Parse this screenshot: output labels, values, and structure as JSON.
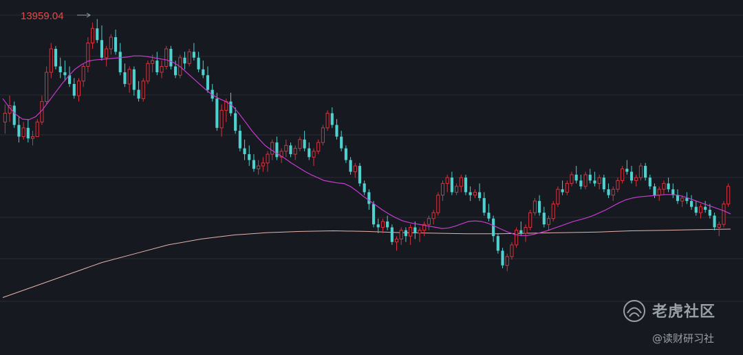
{
  "chart_data": {
    "type": "candlestick",
    "max_price_label": "13959.04",
    "ylim": [
      8900,
      14050
    ],
    "colors": {
      "up": "#d9333f",
      "down": "#4fd1cf",
      "ma_fast": "#c93ad0",
      "ma_slow": "#e8b5ad",
      "grid": "#2a2e36",
      "background": "#16191f"
    },
    "candles": [
      [
        12200,
        12500,
        12000,
        12350
      ],
      [
        12350,
        12650,
        12200,
        12480
      ],
      [
        12480,
        12550,
        12100,
        12150
      ],
      [
        12150,
        12300,
        11850,
        11950
      ],
      [
        11950,
        12200,
        11900,
        12100
      ],
      [
        12100,
        12250,
        11850,
        11920
      ],
      [
        11920,
        12050,
        11800,
        11950
      ],
      [
        11950,
        12250,
        11950,
        12200
      ],
      [
        12200,
        12650,
        12150,
        12550
      ],
      [
        12550,
        13150,
        12500,
        13050
      ],
      [
        13050,
        13550,
        12950,
        13450
      ],
      [
        13450,
        13500,
        13100,
        13150
      ],
      [
        13150,
        13300,
        12950,
        13050
      ],
      [
        13050,
        13250,
        12900,
        13000
      ],
      [
        13000,
        13150,
        12800,
        12850
      ],
      [
        12850,
        12950,
        12600,
        12650
      ],
      [
        12650,
        12950,
        12550,
        12900
      ],
      [
        12900,
        13200,
        12800,
        13150
      ],
      [
        13150,
        13650,
        13050,
        13550
      ],
      [
        13550,
        13900,
        13450,
        13800
      ],
      [
        13800,
        13959,
        13550,
        13600
      ],
      [
        13600,
        13850,
        13250,
        13300
      ],
      [
        13300,
        13500,
        13150,
        13450
      ],
      [
        13450,
        13700,
        13350,
        13650
      ],
      [
        13650,
        13780,
        13350,
        13400
      ],
      [
        13400,
        13550,
        13000,
        13050
      ],
      [
        13050,
        13200,
        12800,
        12850
      ],
      [
        12850,
        13150,
        12700,
        13100
      ],
      [
        13100,
        13150,
        12650,
        12750
      ],
      [
        12750,
        12900,
        12550,
        12600
      ],
      [
        12600,
        12950,
        12550,
        12900
      ],
      [
        12900,
        13250,
        12850,
        13200
      ],
      [
        13200,
        13350,
        13050,
        13250
      ],
      [
        13250,
        13400,
        13000,
        13050
      ],
      [
        13050,
        13250,
        12950,
        13150
      ],
      [
        13150,
        13500,
        13100,
        13450
      ],
      [
        13450,
        13500,
        13100,
        13150
      ],
      [
        13150,
        13250,
        12950,
        13000
      ],
      [
        13000,
        13350,
        12950,
        13300
      ],
      [
        13300,
        13400,
        13100,
        13200
      ],
      [
        13200,
        13450,
        13150,
        13400
      ],
      [
        13400,
        13550,
        13250,
        13300
      ],
      [
        13300,
        13400,
        13050,
        13100
      ],
      [
        13100,
        13250,
        12950,
        13000
      ],
      [
        13000,
        13150,
        12700,
        12750
      ],
      [
        12750,
        12850,
        12550,
        12600
      ],
      [
        12600,
        12700,
        12050,
        12100
      ],
      [
        12100,
        12500,
        11950,
        12400
      ],
      [
        12400,
        12600,
        12200,
        12550
      ],
      [
        12550,
        12700,
        12300,
        12350
      ],
      [
        12350,
        12450,
        12000,
        12050
      ],
      [
        12050,
        12150,
        11700,
        11750
      ],
      [
        11750,
        11900,
        11550,
        11650
      ],
      [
        11650,
        11800,
        11450,
        11550
      ],
      [
        11550,
        11650,
        11350,
        11400
      ],
      [
        11400,
        11550,
        11300,
        11450
      ],
      [
        11450,
        11600,
        11350,
        11500
      ],
      [
        11500,
        11700,
        11350,
        11650
      ],
      [
        11650,
        11900,
        11550,
        11850
      ],
      [
        11850,
        11950,
        11550,
        11600
      ],
      [
        11600,
        11750,
        11500,
        11700
      ],
      [
        11700,
        11900,
        11600,
        11800
      ],
      [
        11800,
        11850,
        11600,
        11650
      ],
      [
        11650,
        11800,
        11550,
        11750
      ],
      [
        11750,
        11950,
        11700,
        11900
      ],
      [
        11900,
        12050,
        11700,
        11750
      ],
      [
        11750,
        11850,
        11550,
        11600
      ],
      [
        11600,
        11750,
        11450,
        11700
      ],
      [
        11700,
        11900,
        11650,
        11850
      ],
      [
        11850,
        12150,
        11800,
        12100
      ],
      [
        12100,
        12400,
        12050,
        12350
      ],
      [
        12350,
        12450,
        12100,
        12150
      ],
      [
        12150,
        12250,
        11900,
        11950
      ],
      [
        11950,
        12050,
        11700,
        11750
      ],
      [
        11750,
        11800,
        11500,
        11550
      ],
      [
        11550,
        11600,
        11300,
        11350
      ],
      [
        11350,
        11500,
        11250,
        11450
      ],
      [
        11450,
        11500,
        11100,
        11150
      ],
      [
        11150,
        11200,
        10950,
        11000
      ],
      [
        11000,
        11050,
        10700,
        10800
      ],
      [
        10800,
        10850,
        10400,
        10450
      ],
      [
        10450,
        10550,
        10300,
        10400
      ],
      [
        10400,
        10550,
        10300,
        10500
      ],
      [
        10500,
        10600,
        10350,
        10400
      ],
      [
        10400,
        10450,
        10100,
        10150
      ],
      [
        10150,
        10250,
        10000,
        10200
      ],
      [
        10200,
        10400,
        10100,
        10350
      ],
      [
        10350,
        10400,
        10150,
        10250
      ],
      [
        10250,
        10450,
        10100,
        10400
      ],
      [
        10400,
        10500,
        10200,
        10300
      ],
      [
        10300,
        10400,
        10150,
        10350
      ],
      [
        10350,
        10500,
        10250,
        10450
      ],
      [
        10450,
        10600,
        10350,
        10550
      ],
      [
        10550,
        10700,
        10450,
        10650
      ],
      [
        10650,
        11000,
        10600,
        10950
      ],
      [
        10950,
        11200,
        10850,
        11150
      ],
      [
        11150,
        11300,
        11000,
        11250
      ],
      [
        11250,
        11350,
        10950,
        11000
      ],
      [
        11000,
        11150,
        10950,
        11100
      ],
      [
        11100,
        11300,
        11000,
        11250
      ],
      [
        11250,
        11300,
        10950,
        11000
      ],
      [
        11000,
        11100,
        10850,
        10950
      ],
      [
        10950,
        11050,
        10900,
        11000
      ],
      [
        11000,
        11150,
        10850,
        10900
      ],
      [
        10900,
        11000,
        10600,
        10650
      ],
      [
        10650,
        10800,
        10500,
        10550
      ],
      [
        10550,
        10600,
        10150,
        10250
      ],
      [
        10250,
        10300,
        9950,
        10000
      ],
      [
        10000,
        10050,
        9700,
        9750
      ],
      [
        9750,
        9950,
        9650,
        9900
      ],
      [
        9900,
        10150,
        9850,
        10100
      ],
      [
        10100,
        10400,
        10050,
        10350
      ],
      [
        10350,
        10500,
        10250,
        10300
      ],
      [
        10300,
        10450,
        10150,
        10400
      ],
      [
        10400,
        10700,
        10350,
        10650
      ],
      [
        10650,
        10900,
        10600,
        10850
      ],
      [
        10850,
        10950,
        10600,
        10650
      ],
      [
        10650,
        10750,
        10400,
        10450
      ],
      [
        10450,
        10600,
        10350,
        10550
      ],
      [
        10550,
        10850,
        10500,
        10800
      ],
      [
        10800,
        11100,
        10750,
        11050
      ],
      [
        11050,
        11200,
        10950,
        11000
      ],
      [
        11000,
        11200,
        10950,
        11150
      ],
      [
        11150,
        11350,
        11100,
        11300
      ],
      [
        11300,
        11450,
        11150,
        11200
      ],
      [
        11200,
        11300,
        11050,
        11100
      ],
      [
        11100,
        11350,
        11050,
        11300
      ],
      [
        11300,
        11400,
        11150,
        11200
      ],
      [
        11200,
        11350,
        11100,
        11150
      ],
      [
        11150,
        11300,
        11050,
        11250
      ],
      [
        11250,
        11300,
        11000,
        11050
      ],
      [
        11050,
        11150,
        10900,
        10950
      ],
      [
        10950,
        11100,
        10850,
        11050
      ],
      [
        11050,
        11250,
        11000,
        11200
      ],
      [
        11200,
        11450,
        11150,
        11400
      ],
      [
        11400,
        11550,
        11300,
        11350
      ],
      [
        11350,
        11450,
        11150,
        11200
      ],
      [
        11200,
        11300,
        11100,
        11250
      ],
      [
        11250,
        11500,
        11200,
        11450
      ],
      [
        11450,
        11500,
        11200,
        11250
      ],
      [
        11250,
        11300,
        11050,
        11100
      ],
      [
        11100,
        11150,
        10900,
        10950
      ],
      [
        10950,
        11100,
        10850,
        11050
      ],
      [
        11050,
        11200,
        10950,
        11150
      ],
      [
        11150,
        11250,
        11000,
        11050
      ],
      [
        11050,
        11150,
        10900,
        10950
      ],
      [
        10950,
        11050,
        10800,
        10850
      ],
      [
        10850,
        10950,
        10750,
        10900
      ],
      [
        10900,
        11000,
        10800,
        10850
      ],
      [
        10850,
        10950,
        10700,
        10750
      ],
      [
        10750,
        10850,
        10600,
        10650
      ],
      [
        10650,
        10800,
        10550,
        10750
      ],
      [
        10750,
        10850,
        10650,
        10700
      ],
      [
        10700,
        10800,
        10550,
        10600
      ],
      [
        10600,
        10650,
        10350,
        10400
      ],
      [
        10400,
        10500,
        10250,
        10450
      ],
      [
        10450,
        10850,
        10400,
        10800
      ],
      [
        10800,
        11150,
        10750,
        11100
      ]
    ],
    "ma_fast": [
      12600,
      12450,
      12330,
      12250,
      12240,
      12290,
      12400,
      12550,
      12700,
      12850,
      12980,
      13100,
      13180,
      13240,
      13260,
      13270,
      13280,
      13290,
      13300,
      13310,
      13330,
      13330,
      13320,
      13300,
      13280,
      13260,
      13220,
      13150,
      13050,
      12950,
      12850,
      12750,
      12660,
      12600,
      12550,
      12480,
      12350,
      12200,
      12050,
      11920,
      11800,
      11720,
      11650,
      11580,
      11500,
      11430,
      11360,
      11300,
      11250,
      11200,
      11180,
      11160,
      11150,
      11100,
      11020,
      10930,
      10850,
      10770,
      10690,
      10620,
      10560,
      10510,
      10480,
      10460,
      10440,
      10420,
      10400,
      10380,
      10390,
      10420,
      10460,
      10500,
      10510,
      10500,
      10470,
      10420,
      10370,
      10320,
      10280,
      10260,
      10260,
      10280,
      10310,
      10340,
      10380,
      10420,
      10460,
      10500,
      10530,
      10560,
      10600,
      10650,
      10700,
      10760,
      10820,
      10870,
      10900,
      10920,
      10930,
      10940,
      10950,
      10960,
      10960,
      10950,
      10920,
      10880,
      10840,
      10800,
      10760,
      10720,
      10680,
      10630
    ],
    "ma_slow": [
      9200,
      9400,
      9600,
      9800,
      9950,
      10100,
      10200,
      10270,
      10310,
      10330,
      10340,
      10330,
      10310,
      10300,
      10290,
      10290,
      10300,
      10310,
      10320,
      10340,
      10350,
      10360,
      10370
    ]
  },
  "watermark": {
    "brand": "老虎社区",
    "sub": "@读财研习社",
    "logo": "tiger-logo-icon"
  }
}
